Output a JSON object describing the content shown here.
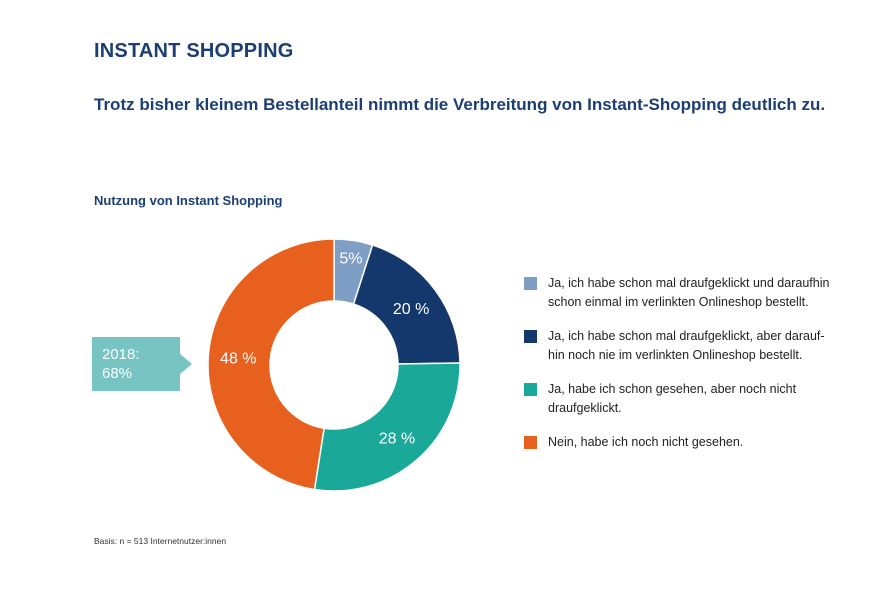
{
  "header": {
    "section_title": "INSTANT SHOPPING",
    "headline": "Trotz bisher kleinem Bestellanteil nimmt die Verbreitung von Instant-Shopping deutlich zu."
  },
  "callout": {
    "line1": "2018:",
    "line2": "68%"
  },
  "footnote": "Basis: n = 513 Internetnutzer:innen",
  "chart_data": {
    "type": "pie",
    "title": "Nutzung von Instant Shopping",
    "donut": true,
    "slices": [
      {
        "label": "Ja, ich habe schon mal draufgeklickt und daraufhin schon einmal im verlinkten Onlineshop bestellt.",
        "line1": "Ja, ich habe schon mal draufgeklickt und daraufhin",
        "line2": "schon einmal im verlinkten Onlineshop bestellt.",
        "value": 5,
        "value_label": "5%",
        "color": "#7f9ec6"
      },
      {
        "label": "Ja, ich habe schon mal draufgeklickt, aber darauf-hin noch nie im verlinkten Onlineshop bestellt.",
        "line1": "Ja, ich habe schon mal draufgeklickt, aber darauf-",
        "line2": "hin noch nie im verlinkten Onlineshop bestellt.",
        "value": 20,
        "value_label": "20 %",
        "color": "#14386b"
      },
      {
        "label": "Ja, habe ich schon gesehen, aber noch nicht draufgeklickt.",
        "line1": "Ja, habe ich schon gesehen, aber noch nicht",
        "line2": "draufgeklickt.",
        "value": 28,
        "value_label": "28 %",
        "color": "#1aa898"
      },
      {
        "label": "Nein, habe ich noch nicht gesehen.",
        "line1": "Nein, habe ich noch nicht gesehen.",
        "line2": "",
        "value": 48,
        "value_label": "48 %",
        "color": "#e8601e"
      }
    ],
    "legend_position": "right"
  }
}
